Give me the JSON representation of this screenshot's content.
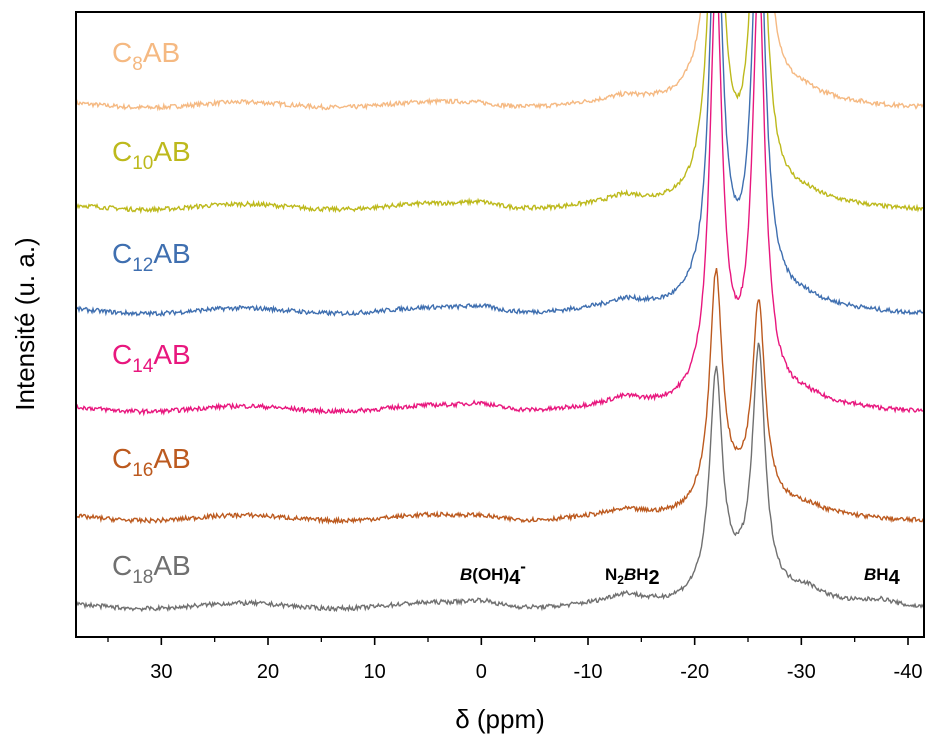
{
  "chart_data": {
    "type": "line",
    "xlabel": "δ (ppm)",
    "ylabel": "Intensité (u. a.)",
    "xlim": [
      38,
      -41.5
    ],
    "x_reversed": true,
    "xticks": [
      30,
      20,
      10,
      0,
      -10,
      -20,
      -30,
      -40
    ],
    "xtick_labels": [
      "30",
      "20",
      "10",
      "0",
      "-10",
      "-20",
      "-30",
      "-40"
    ],
    "yticks_shown": false,
    "grid": false,
    "legend": "inline labels left of each trace",
    "series": [
      {
        "label_main": "C",
        "label_sub": "8",
        "label_tail": "AB",
        "color": "#F5B982",
        "offset": 5,
        "peaks": [
          {
            "ppm": 0.5,
            "h": 0.04
          },
          {
            "ppm": -13.5,
            "h": 0.1
          },
          {
            "ppm": -22.0,
            "h": 9.0
          },
          {
            "ppm": -26.0,
            "h": 9.0
          },
          {
            "ppm": -30.5,
            "h": 0.12
          }
        ],
        "clip_top": 0.995
      },
      {
        "label_main": "C",
        "label_sub": "10",
        "label_tail": "AB",
        "color": "#BDB91C",
        "offset": 4,
        "peaks": [
          {
            "ppm": 0.0,
            "h": 0.1
          },
          {
            "ppm": -13.5,
            "h": 0.15
          },
          {
            "ppm": -22.0,
            "h": 9.0
          },
          {
            "ppm": -26.0,
            "h": 9.0
          },
          {
            "ppm": -30.5,
            "h": 0.12
          }
        ],
        "clip_top": 0.995
      },
      {
        "label_main": "C",
        "label_sub": "12",
        "label_tail": "AB",
        "color": "#3F6FB0",
        "offset": 3,
        "peaks": [
          {
            "ppm": 0.0,
            "h": 0.1
          },
          {
            "ppm": -13.5,
            "h": 0.15
          },
          {
            "ppm": -22.0,
            "h": 9.0
          },
          {
            "ppm": -26.0,
            "h": 9.0
          },
          {
            "ppm": -30.5,
            "h": 0.12
          }
        ],
        "clip_top": 0.995
      },
      {
        "label_main": "C",
        "label_sub": "14",
        "label_tail": "AB",
        "color": "#E8177E",
        "offset": 2,
        "peaks": [
          {
            "ppm": 0.0,
            "h": 0.12
          },
          {
            "ppm": -13.5,
            "h": 0.15
          },
          {
            "ppm": -22.0,
            "h": 9.0
          },
          {
            "ppm": -26.0,
            "h": 9.0
          },
          {
            "ppm": -30.5,
            "h": 0.12
          }
        ],
        "clip_top": 0.995
      },
      {
        "label_main": "C",
        "label_sub": "16",
        "label_tail": "AB",
        "color": "#BC5A1F",
        "offset": 1,
        "peaks": [
          {
            "ppm": 0.0,
            "h": 0.05
          },
          {
            "ppm": -13.5,
            "h": 0.1
          },
          {
            "ppm": -22.0,
            "h": 5.0
          },
          {
            "ppm": -26.0,
            "h": 4.3
          },
          {
            "ppm": -30.5,
            "h": 0.15
          }
        ],
        "clip_top": 0.995
      },
      {
        "label_main": "C",
        "label_sub": "18",
        "label_tail": "AB",
        "color": "#707070",
        "offset": 0,
        "peaks": [
          {
            "ppm": 0.0,
            "h": 0.12
          },
          {
            "ppm": -13.5,
            "h": 0.18
          },
          {
            "ppm": -22.0,
            "h": 4.75
          },
          {
            "ppm": -26.0,
            "h": 5.2
          },
          {
            "ppm": -30.5,
            "h": 0.25
          },
          {
            "ppm": -37.5,
            "h": 0.15
          }
        ],
        "clip_top": 0.995
      }
    ],
    "annotations": [
      {
        "parts": [
          {
            "t": "B",
            "i": true
          },
          {
            "t": "(OH)"
          },
          {
            "t": "4",
            "big": true
          },
          {
            "t": "-",
            "sup": true
          }
        ],
        "ppm": 0.5
      },
      {
        "parts": [
          {
            "t": "N"
          },
          {
            "t": "2",
            "sub": true
          },
          {
            "t": "B",
            "i": true
          },
          {
            "t": "H"
          },
          {
            "t": "2",
            "big": true
          }
        ],
        "ppm": -13.5
      },
      {
        "parts": [
          {
            "t": "B",
            "i": true
          },
          {
            "t": "H"
          },
          {
            "t": "4",
            "big": true
          }
        ],
        "ppm": -37.3
      }
    ]
  }
}
